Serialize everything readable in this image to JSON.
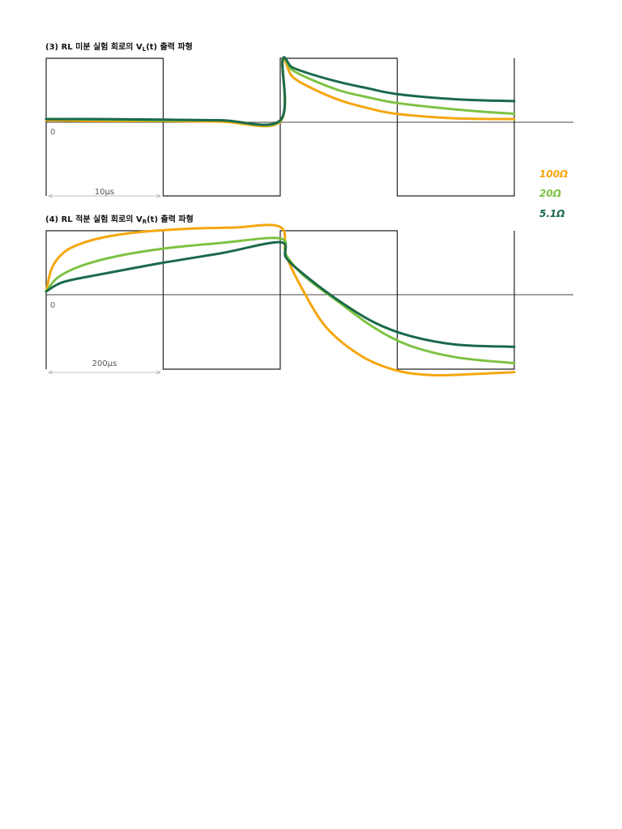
{
  "diagrams": [
    {
      "id": "differentiator",
      "title": "(3) RL 미분 실험 회로의 V",
      "title_sub": "L",
      "title_tail": "(t) 출력 파형",
      "zero_label": "0",
      "period_label": "10μs"
    },
    {
      "id": "integrator",
      "title": "(4) RL 적분 실험 회로의 V",
      "title_sub": "R",
      "title_tail": "(t) 출력 파형",
      "zero_label": "0",
      "period_label": "200μs"
    }
  ],
  "legend": [
    {
      "label": "100Ω",
      "color": "#f5a60c"
    },
    {
      "label": "20Ω",
      "color": "#7cc242"
    },
    {
      "label": "5.1Ω",
      "color": "#1a6a4a"
    }
  ],
  "chart_data": [
    {
      "type": "line",
      "title": "(3) RL 미분 실험 회로의 VL(t) 출력 파형",
      "xlabel": "",
      "ylabel": "",
      "x_unit": "period",
      "y_range": [
        -1,
        1
      ],
      "input_square_wave": {
        "x": [
          0,
          0,
          1,
          1,
          2,
          2,
          3,
          3,
          4,
          4
        ],
        "y": [
          -1,
          1,
          1,
          -1,
          -1,
          1,
          1,
          -1,
          -1,
          1
        ]
      },
      "series": [
        {
          "name": "100Ω",
          "color": "#f5a60c",
          "x": [
            0,
            0.5,
            1,
            1.5,
            2,
            2.02,
            2.1,
            2.25,
            2.5,
            2.75,
            3,
            3.5,
            4
          ],
          "y": [
            0.03,
            0.02,
            0.02,
            0.01,
            0.01,
            0.97,
            0.72,
            0.55,
            0.35,
            0.22,
            0.13,
            0.06,
            0.05
          ]
        },
        {
          "name": "20Ω",
          "color": "#7cc242",
          "x": [
            0,
            0.5,
            1,
            1.5,
            2,
            2.02,
            2.1,
            2.25,
            2.5,
            2.75,
            3,
            3.5,
            4
          ],
          "y": [
            0.05,
            0.04,
            0.03,
            0.03,
            0.02,
            0.97,
            0.82,
            0.68,
            0.5,
            0.39,
            0.3,
            0.2,
            0.13
          ]
        },
        {
          "name": "5.1Ω",
          "color": "#1a6a4a",
          "x": [
            0,
            0.5,
            1,
            1.5,
            2,
            2.02,
            2.1,
            2.25,
            2.5,
            2.75,
            3,
            3.5,
            4
          ],
          "y": [
            0.05,
            0.05,
            0.04,
            0.03,
            0.03,
            0.97,
            0.86,
            0.76,
            0.63,
            0.53,
            0.44,
            0.36,
            0.33
          ]
        }
      ]
    },
    {
      "type": "line",
      "title": "(4) RL 적분 실험 회로의 VR(t) 출력 파형",
      "xlabel": "",
      "ylabel": "",
      "x_unit": "period",
      "y_range": [
        -1,
        1
      ],
      "input_square_wave": {
        "x": [
          0,
          0,
          1,
          1,
          2,
          2,
          3,
          3,
          4,
          4
        ],
        "y": [
          -1,
          1,
          1,
          -1,
          -1,
          1,
          1,
          -1,
          -1,
          1
        ]
      },
      "series": [
        {
          "name": "100Ω",
          "color": "#f5a60c",
          "x": [
            0,
            0.05,
            0.15,
            0.3,
            0.5,
            0.8,
            1.2,
            1.6,
            2,
            2.05,
            2.2,
            2.4,
            2.7,
            3,
            3.3,
            3.6,
            4
          ],
          "y": [
            0.05,
            0.42,
            0.66,
            0.8,
            0.9,
            0.98,
            1.03,
            1.05,
            1.06,
            0.62,
            0.05,
            -0.45,
            -0.83,
            -1.02,
            -1.08,
            -1.07,
            -1.04
          ]
        },
        {
          "name": "20Ω",
          "color": "#7cc242",
          "x": [
            0,
            0.1,
            0.3,
            0.6,
            1,
            1.5,
            2,
            2.05,
            2.2,
            2.5,
            2.8,
            3.1,
            3.5,
            4
          ],
          "y": [
            0.05,
            0.27,
            0.45,
            0.6,
            0.72,
            0.81,
            0.88,
            0.62,
            0.3,
            -0.1,
            -0.44,
            -0.68,
            -0.84,
            -0.92
          ]
        },
        {
          "name": "5.1Ω",
          "color": "#1a6a4a",
          "x": [
            0,
            0.15,
            0.5,
            1,
            1.5,
            2,
            2.05,
            2.2,
            2.5,
            2.8,
            3.1,
            3.5,
            4
          ],
          "y": [
            0.05,
            0.2,
            0.33,
            0.5,
            0.65,
            0.82,
            0.58,
            0.32,
            -0.08,
            -0.37,
            -0.55,
            -0.67,
            -0.7
          ]
        }
      ]
    }
  ]
}
